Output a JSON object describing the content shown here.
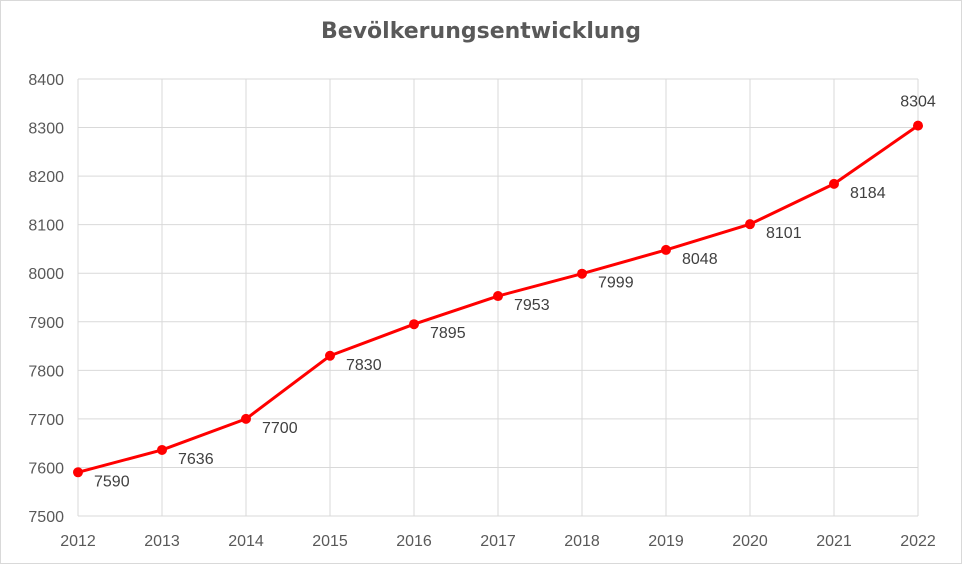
{
  "chart_data": {
    "type": "line",
    "title": "Bevölkerungsentwicklung",
    "xlabel": "",
    "ylabel": "",
    "x": [
      "2012",
      "2013",
      "2014",
      "2015",
      "2016",
      "2017",
      "2018",
      "2019",
      "2020",
      "2021",
      "2022"
    ],
    "series": [
      {
        "values": [
          7590,
          7636,
          7700,
          7830,
          7895,
          7953,
          7999,
          8048,
          8101,
          8184,
          8304
        ],
        "color": "#ff0000"
      }
    ],
    "data_labels": true,
    "ylim": [
      7500,
      8400
    ],
    "yticks": [
      7500,
      7600,
      7700,
      7800,
      7900,
      8000,
      8100,
      8200,
      8300,
      8400
    ],
    "grid": true,
    "legend": "none"
  }
}
